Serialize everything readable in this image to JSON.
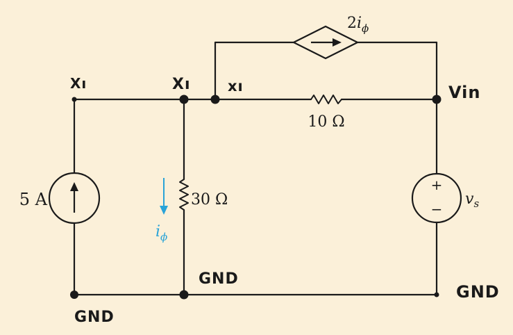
{
  "colors": {
    "background": "#fbf0d9",
    "wire": "#1a1a1a",
    "annotation": "#29a3d8"
  },
  "labels": {
    "node_x1_left": "Xı",
    "node_x1_mid": "Xı",
    "node_x1_right": "xı",
    "node_vin": "Vin",
    "gnd_left": "GND",
    "gnd_mid": "GND",
    "gnd_right": "GND"
  },
  "components": {
    "current_source": {
      "label": "5 A",
      "icon": "arrow-up-icon"
    },
    "resistor_30": {
      "label": "30 Ω"
    },
    "resistor_10": {
      "label": "10 Ω"
    },
    "dependent_source": {
      "coef": "2",
      "var": "i",
      "sub": "ϕ",
      "icon": "arrow-right-icon"
    },
    "voltage_source": {
      "var": "v",
      "sub": "s",
      "plus": "+",
      "minus": "−"
    },
    "current_i_phi": {
      "var": "i",
      "sub": "ϕ",
      "icon": "arrow-down-icon"
    }
  }
}
